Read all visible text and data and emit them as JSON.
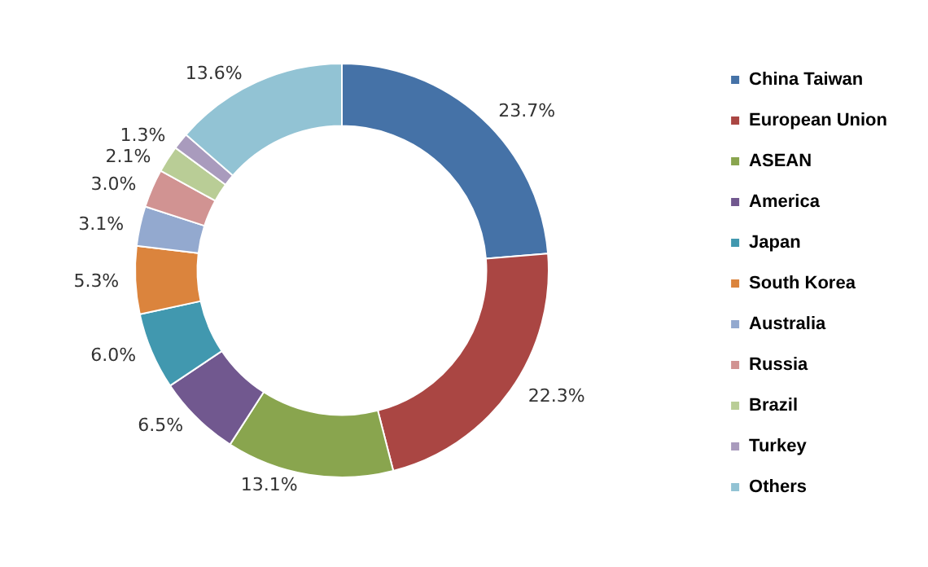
{
  "chart_data": {
    "type": "donut",
    "categories": [
      "China Taiwan",
      "European Union",
      "ASEAN",
      "America",
      "Japan",
      "South Korea",
      "Australia",
      "Russia",
      "Brazil",
      "Turkey",
      "Others"
    ],
    "values": [
      23.7,
      22.3,
      13.1,
      6.5,
      6.0,
      5.3,
      3.1,
      3.0,
      2.1,
      1.3,
      13.6
    ],
    "value_labels": [
      "23.7%",
      "22.3%",
      "13.1%",
      "6.5%",
      "6.0%",
      "5.3%",
      "3.1%",
      "3.0%",
      "2.1%",
      "1.3%",
      "13.6%"
    ],
    "colors": [
      "#4572a7",
      "#aa4643",
      "#89a54e",
      "#71588f",
      "#4198af",
      "#db843d",
      "#93a9cf",
      "#d19392",
      "#b9cd96",
      "#a99bbd",
      "#92c3d4"
    ],
    "legend": "right"
  }
}
